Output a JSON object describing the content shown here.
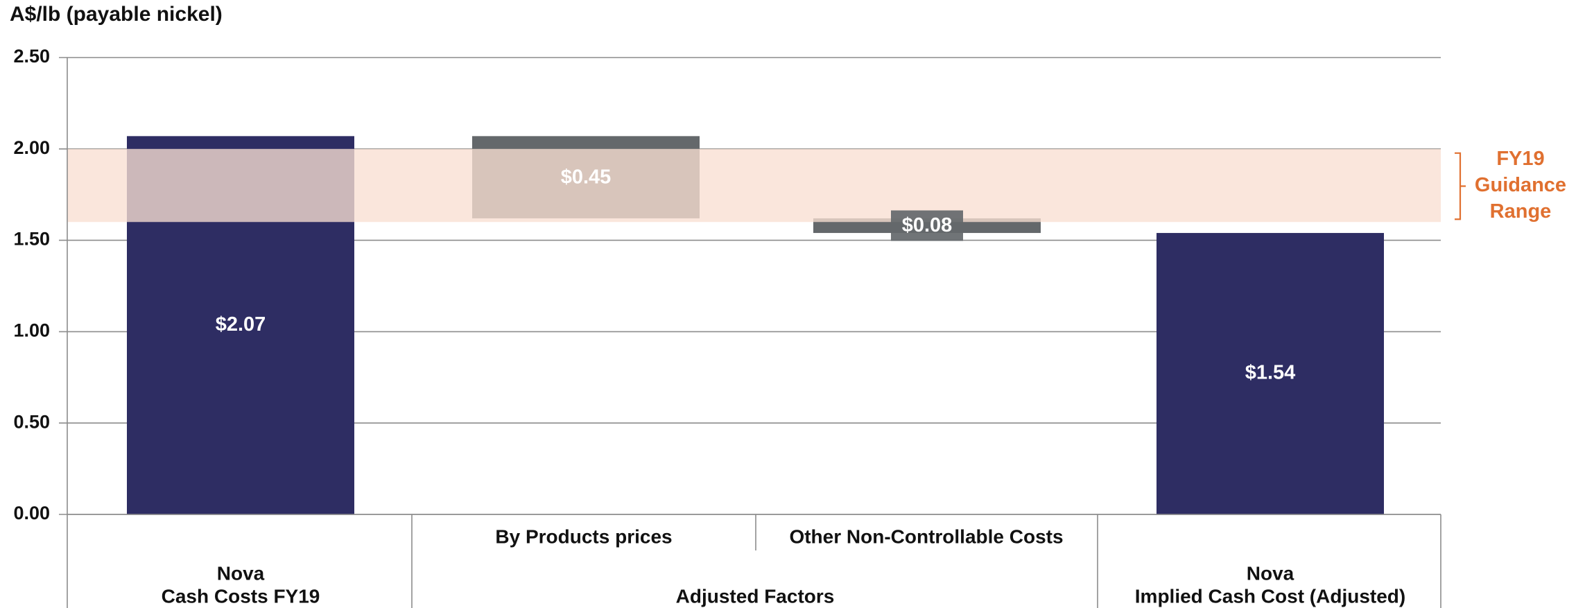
{
  "chart_data": {
    "type": "bar",
    "subtype": "waterfall",
    "ylabel": "A$/lb (payable nickel)",
    "ylim": [
      0,
      2.5
    ],
    "yticks": [
      "0.00",
      "0.50",
      "1.00",
      "1.50",
      "2.00",
      "2.50"
    ],
    "grid": true,
    "steps": [
      {
        "category": "Nova\nCash Costs FY19",
        "kind": "total",
        "start": 0,
        "end": 2.07,
        "label": "$2.07"
      },
      {
        "category": "By Products prices",
        "kind": "decrease",
        "start": 2.07,
        "end": 1.62,
        "label": "$0.45"
      },
      {
        "category": "Other Non-Controllable Costs",
        "kind": "decrease",
        "start": 1.62,
        "end": 1.54,
        "label": "$0.08"
      },
      {
        "category": "Nova\nImplied Cash Cost (Adjusted)",
        "kind": "total",
        "start": 0,
        "end": 1.54,
        "label": "$1.54"
      }
    ],
    "category_labels": {
      "total_first_line1": "Nova",
      "total_first_line2": "Cash Costs FY19",
      "adjusted_group": "Adjusted Factors",
      "sub1": "By Products prices",
      "sub2": "Other Non-Controllable Costs",
      "total_last_line1": "Nova",
      "total_last_line2": "Implied Cash Cost (Adjusted)"
    },
    "guidance_band": {
      "low": 1.6,
      "high": 2.0,
      "label_lines": [
        "FY19",
        "Guidance",
        "Range"
      ]
    },
    "colors": {
      "total": "#2e2d63",
      "decrease": "#64686b",
      "band": "#f9dfd2",
      "band_label": "#e07030",
      "grid": "#8c8c8c",
      "text": "#111111"
    }
  }
}
